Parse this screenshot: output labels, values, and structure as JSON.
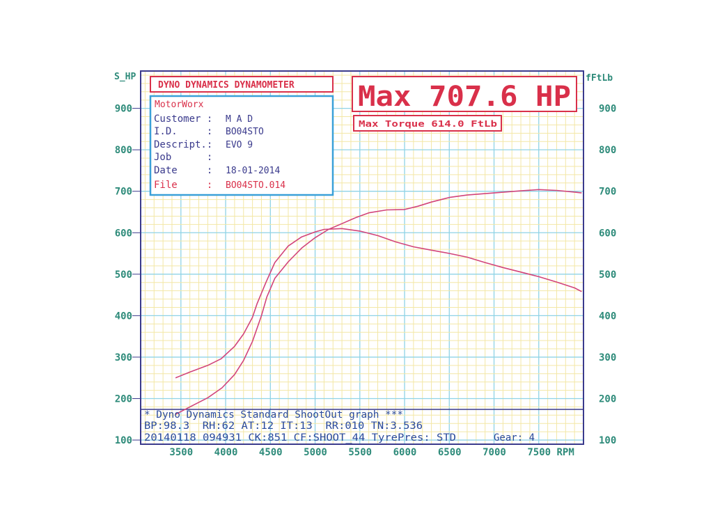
{
  "colors": {
    "frame": "#3a3a8c",
    "grid_minor": "#f3e7a6",
    "grid_major": "#8fd3e6",
    "axis_label": "#2e8b7a",
    "curve": "#d2447a",
    "red_text": "#d9304a",
    "info_border": "#3aa0d8",
    "info_text": "#3a3a8c"
  },
  "left_axis_title": "S_HP",
  "right_axis_title": "fFtLb",
  "header_title": "DYNO DYNAMICS DYNAMOMETER",
  "max_hp": "Max 707.6 HP",
  "max_torque": "Max Torque 614.0 FtLb",
  "info": {
    "shop": "MotorWorx",
    "customer_label": "Customer :",
    "customer_value": "M A D",
    "id_label": "I.D.     :",
    "id_value": "BO04STO",
    "descript_label": "Descript.:",
    "descript_value": "EVO 9",
    "job_label": "Job      :",
    "job_value": "",
    "date_label": "Date     :",
    "date_value": "18-01-2014",
    "file_label": "File     :",
    "file_value": "BO04STO.014"
  },
  "footer": {
    "line1": "* Dyno Dynamics Standard ShootOut graph ***",
    "line2": "BP:98.3  RH:62 AT:12 IT:13  RR:010 TN:3.536",
    "line3": "20140118 094931 CK:851 CF:SHOOT_44 TyrePres: STD",
    "gear": "Gear: 4"
  },
  "chart_data": {
    "type": "line",
    "title": "DYNO DYNAMICS DYNAMOMETER",
    "xlabel": "RPM",
    "ylabel_left": "S_HP",
    "ylabel_right": "fFtLb",
    "xlim": [
      3050,
      8000
    ],
    "ylim": [
      90,
      990
    ],
    "x_ticks": [
      3500,
      4000,
      4500,
      5000,
      5500,
      6000,
      6500,
      7000,
      7500
    ],
    "x_tick_labels": [
      "3500",
      "4000",
      "4500",
      "5000",
      "5500",
      "6000",
      "6500",
      "7000",
      "7500 RPM"
    ],
    "y_ticks_left": [
      100,
      200,
      300,
      400,
      500,
      600,
      700,
      800,
      900
    ],
    "y_ticks_right": [
      100,
      200,
      300,
      400,
      500,
      600,
      700,
      800,
      900
    ],
    "grid": true,
    "series": [
      {
        "name": "",
        "values": [
          [
            3440,
            162
          ],
          [
            3600,
            180
          ],
          [
            3800,
            202
          ],
          [
            3960,
            226
          ],
          [
            4100,
            258
          ],
          [
            4200,
            292
          ],
          [
            4300,
            338
          ],
          [
            4400,
            400
          ],
          [
            4460,
            445
          ],
          [
            4550,
            490
          ],
          [
            4700,
            530
          ],
          [
            4850,
            563
          ],
          [
            5000,
            588
          ],
          [
            5150,
            608
          ],
          [
            5300,
            622
          ],
          [
            5450,
            636
          ],
          [
            5600,
            648
          ],
          [
            5800,
            655
          ],
          [
            6000,
            656
          ],
          [
            6150,
            664
          ],
          [
            6300,
            674
          ],
          [
            6500,
            685
          ],
          [
            6700,
            691
          ],
          [
            7000,
            696
          ],
          [
            7300,
            701
          ],
          [
            7500,
            704
          ],
          [
            7700,
            702
          ],
          [
            7900,
            698
          ],
          [
            7980,
            696
          ]
        ]
      },
      {
        "name": "",
        "values": [
          [
            3440,
            250
          ],
          [
            3600,
            264
          ],
          [
            3800,
            280
          ],
          [
            3950,
            296
          ],
          [
            4100,
            326
          ],
          [
            4200,
            356
          ],
          [
            4300,
            396
          ],
          [
            4350,
            428
          ],
          [
            4450,
            480
          ],
          [
            4550,
            528
          ],
          [
            4700,
            568
          ],
          [
            4850,
            590
          ],
          [
            5000,
            602
          ],
          [
            5100,
            608
          ],
          [
            5300,
            610
          ],
          [
            5500,
            604
          ],
          [
            5700,
            593
          ],
          [
            5900,
            578
          ],
          [
            6100,
            566
          ],
          [
            6300,
            558
          ],
          [
            6500,
            550
          ],
          [
            6700,
            541
          ],
          [
            6900,
            528
          ],
          [
            7100,
            516
          ],
          [
            7300,
            505
          ],
          [
            7500,
            494
          ],
          [
            7700,
            481
          ],
          [
            7900,
            467
          ],
          [
            7980,
            458
          ]
        ]
      }
    ]
  }
}
